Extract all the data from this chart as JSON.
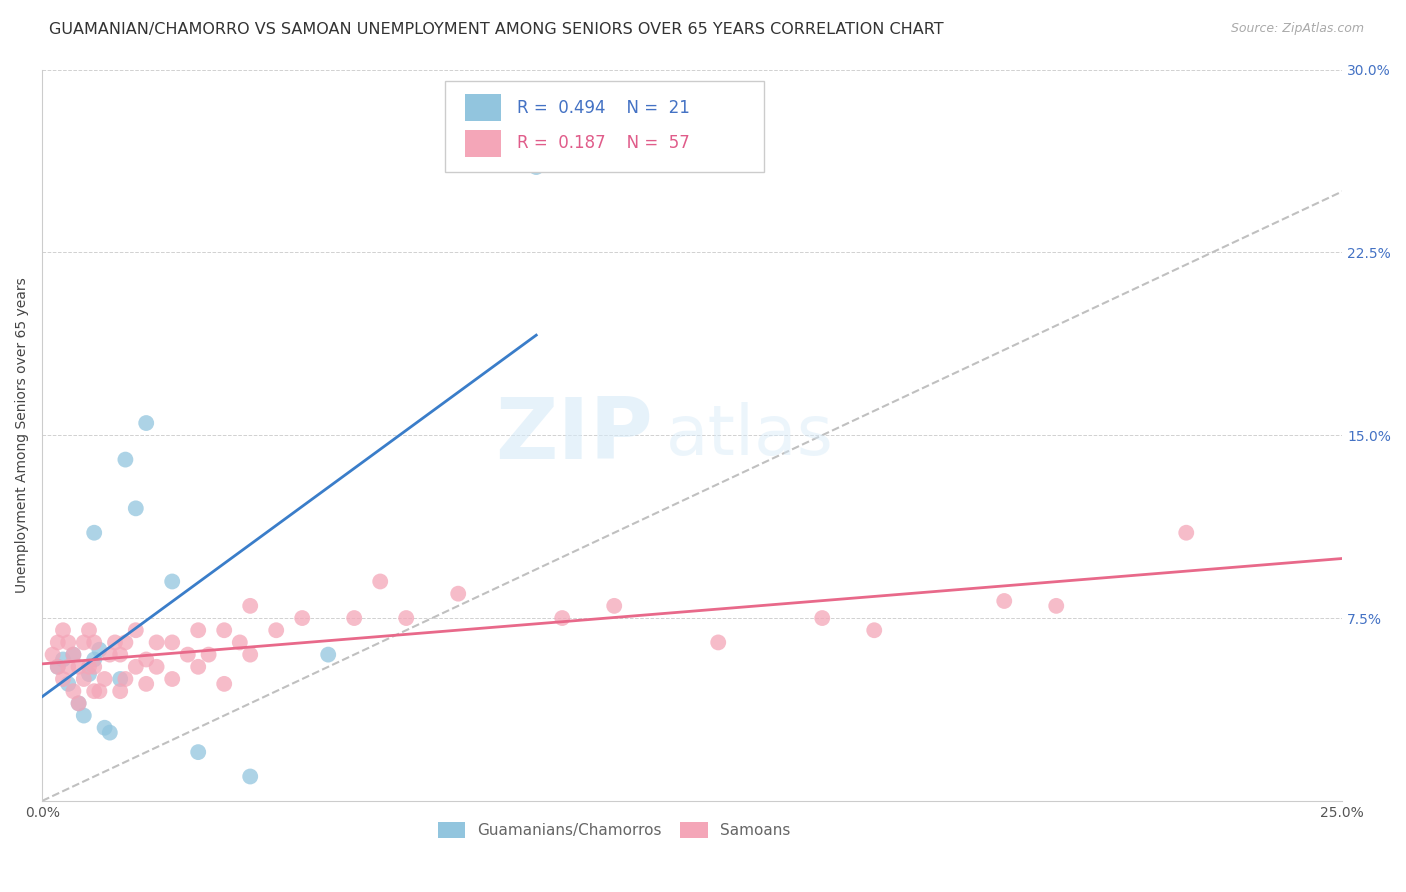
{
  "title": "GUAMANIAN/CHAMORRO VS SAMOAN UNEMPLOYMENT AMONG SENIORS OVER 65 YEARS CORRELATION CHART",
  "source": "Source: ZipAtlas.com",
  "ylabel": "Unemployment Among Seniors over 65 years",
  "xlim": [
    0,
    0.25
  ],
  "ylim": [
    0,
    0.3
  ],
  "xticks": [
    0.0,
    0.05,
    0.1,
    0.15,
    0.2,
    0.25
  ],
  "yticks": [
    0.0,
    0.075,
    0.15,
    0.225,
    0.3
  ],
  "xticklabels": [
    "0.0%",
    "",
    "",
    "",
    "",
    "25.0%"
  ],
  "yticklabels": [
    "",
    "7.5%",
    "15.0%",
    "22.5%",
    "30.0%"
  ],
  "legend_r_blue": "0.494",
  "legend_n_blue": "21",
  "legend_r_pink": "0.187",
  "legend_n_pink": "57",
  "guamanian_x": [
    0.003,
    0.004,
    0.005,
    0.006,
    0.007,
    0.008,
    0.009,
    0.01,
    0.01,
    0.011,
    0.012,
    0.013,
    0.015,
    0.016,
    0.018,
    0.02,
    0.025,
    0.03,
    0.04,
    0.055,
    0.095
  ],
  "guamanian_y": [
    0.055,
    0.058,
    0.048,
    0.06,
    0.04,
    0.035,
    0.052,
    0.058,
    0.11,
    0.062,
    0.03,
    0.028,
    0.05,
    0.14,
    0.12,
    0.155,
    0.09,
    0.02,
    0.01,
    0.06,
    0.26
  ],
  "samoan_x": [
    0.002,
    0.003,
    0.003,
    0.004,
    0.004,
    0.005,
    0.005,
    0.006,
    0.006,
    0.007,
    0.007,
    0.008,
    0.008,
    0.009,
    0.009,
    0.01,
    0.01,
    0.01,
    0.011,
    0.012,
    0.013,
    0.014,
    0.015,
    0.015,
    0.016,
    0.016,
    0.018,
    0.018,
    0.02,
    0.02,
    0.022,
    0.022,
    0.025,
    0.025,
    0.028,
    0.03,
    0.03,
    0.032,
    0.035,
    0.035,
    0.038,
    0.04,
    0.04,
    0.045,
    0.05,
    0.06,
    0.065,
    0.07,
    0.08,
    0.1,
    0.11,
    0.13,
    0.15,
    0.16,
    0.185,
    0.195,
    0.22
  ],
  "samoan_y": [
    0.06,
    0.055,
    0.065,
    0.05,
    0.07,
    0.055,
    0.065,
    0.045,
    0.06,
    0.04,
    0.055,
    0.05,
    0.065,
    0.055,
    0.07,
    0.045,
    0.055,
    0.065,
    0.045,
    0.05,
    0.06,
    0.065,
    0.045,
    0.06,
    0.05,
    0.065,
    0.055,
    0.07,
    0.048,
    0.058,
    0.055,
    0.065,
    0.05,
    0.065,
    0.06,
    0.055,
    0.07,
    0.06,
    0.048,
    0.07,
    0.065,
    0.06,
    0.08,
    0.07,
    0.075,
    0.075,
    0.09,
    0.075,
    0.085,
    0.075,
    0.08,
    0.065,
    0.075,
    0.07,
    0.082,
    0.08,
    0.11
  ],
  "blue_color": "#92c5de",
  "pink_color": "#f4a6b8",
  "blue_line_color": "#3a7dc9",
  "pink_line_color": "#e8698a",
  "diagonal_color": "#c0c0c0",
  "background_color": "#ffffff",
  "watermark_zip": "ZIP",
  "watermark_atlas": "atlas",
  "title_fontsize": 11.5,
  "label_fontsize": 10,
  "tick_fontsize": 10,
  "legend_fontsize": 12
}
